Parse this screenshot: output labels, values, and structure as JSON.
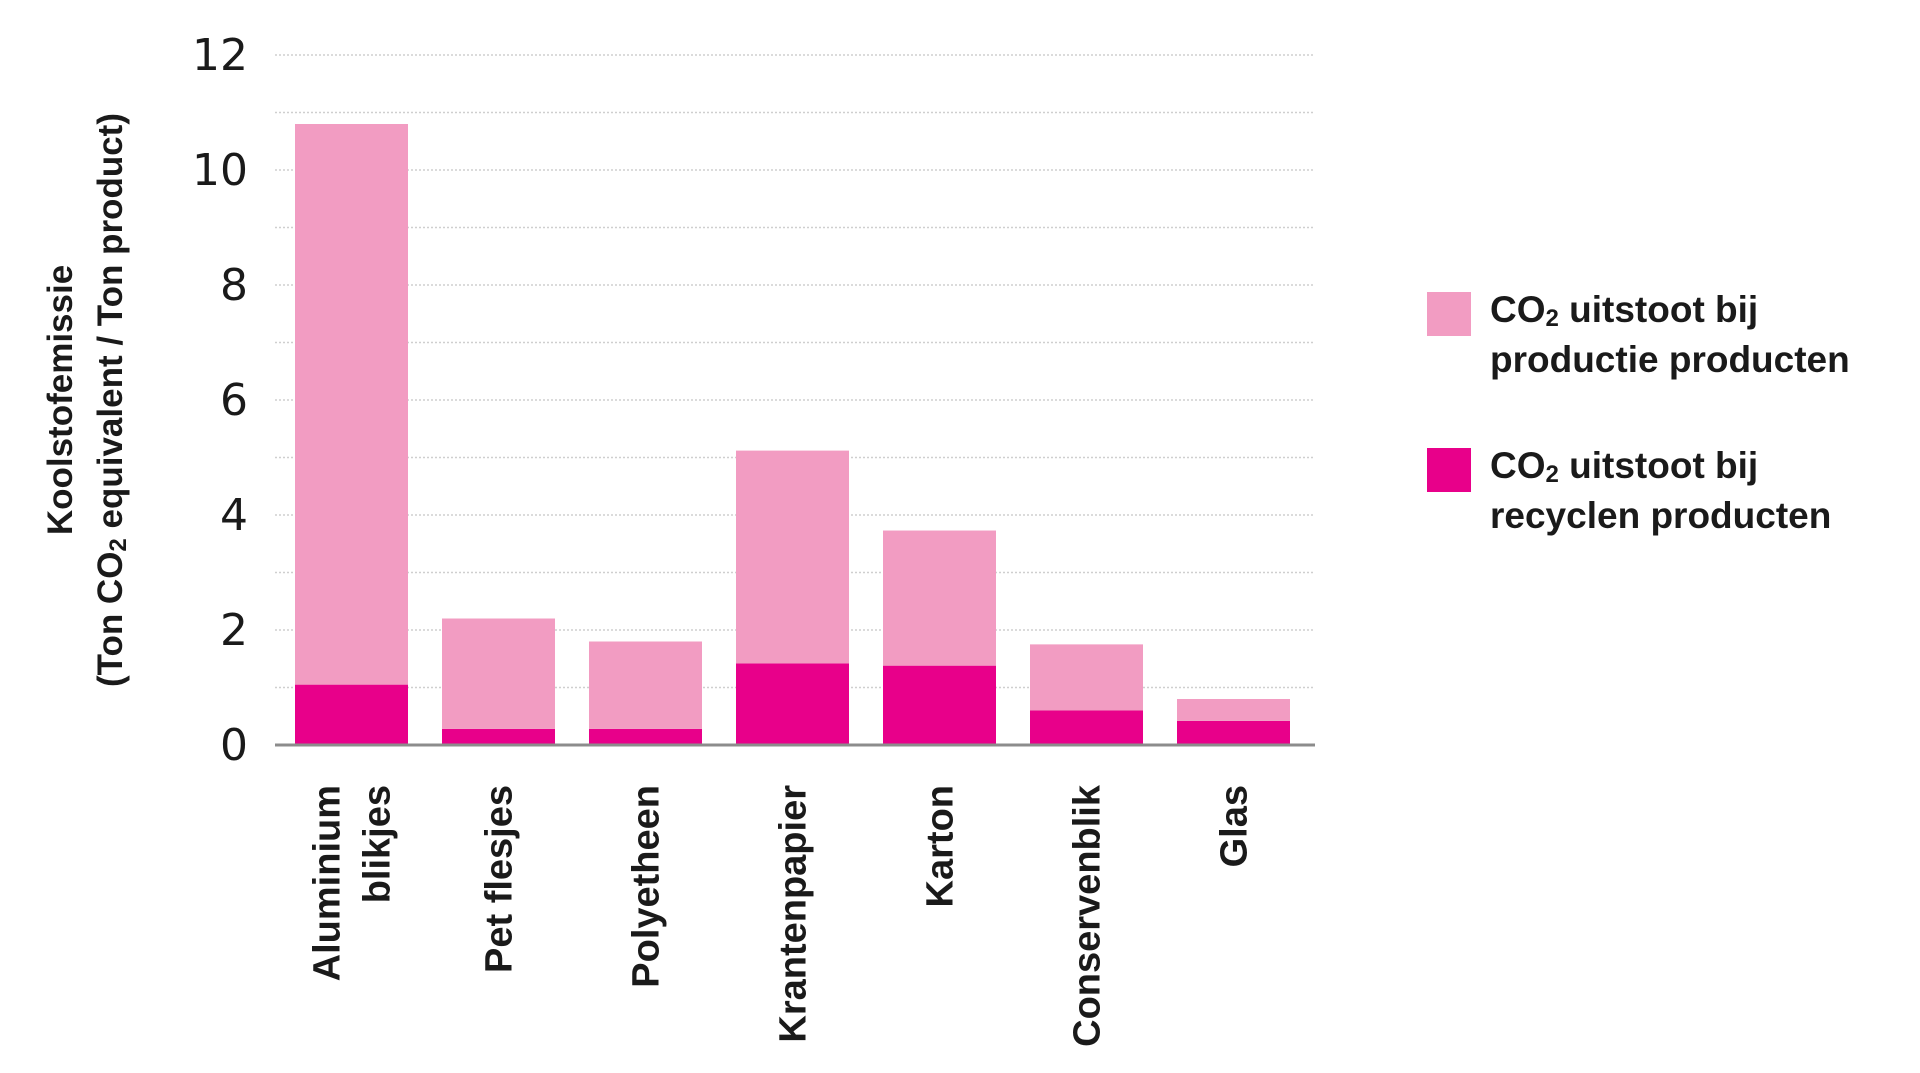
{
  "chart_data": {
    "type": "bar",
    "stacked": true,
    "categories": [
      "Aluminium blikjes",
      "Pet flesjes",
      "Polyetheen",
      "Krantenpapier",
      "Karton",
      "Conservenblik",
      "Glas"
    ],
    "category_label_lines": [
      [
        "Aluminium",
        "blikjes"
      ],
      [
        "Pet flesjes"
      ],
      [
        "Polyetheen"
      ],
      [
        "Krantenpapier"
      ],
      [
        "Karton"
      ],
      [
        "Conservenblik"
      ],
      [
        "Glas"
      ]
    ],
    "series": [
      {
        "name": "CO2 uitstoot bij recyclen producten",
        "color": "#e8008a",
        "values": [
          1.05,
          0.28,
          0.28,
          1.42,
          1.38,
          0.6,
          0.42
        ]
      },
      {
        "name": "CO2 uitstoot bij productie producten",
        "color": "#f29cc2",
        "values": [
          9.75,
          1.92,
          1.52,
          3.7,
          2.35,
          1.15,
          0.38
        ]
      }
    ],
    "totals": [
      10.8,
      2.2,
      1.8,
      5.12,
      3.73,
      1.75,
      0.8
    ],
    "ylim": [
      0,
      12
    ],
    "yticks": [
      0,
      2,
      4,
      6,
      8,
      10,
      12
    ],
    "grid": true,
    "ylabel_lines": [
      "Koolstofemissie",
      "(Ton CO2 equivalent / Ton product)"
    ],
    "xlabel": "",
    "title": "",
    "legend": {
      "position": "right",
      "entries": [
        {
          "lines": [
            "CO2 uitstoot bij",
            "productie producten"
          ],
          "color": "#f29cc2"
        },
        {
          "lines": [
            "CO2 uitstoot bij",
            "recyclen producten"
          ],
          "color": "#e8008a"
        }
      ]
    }
  }
}
